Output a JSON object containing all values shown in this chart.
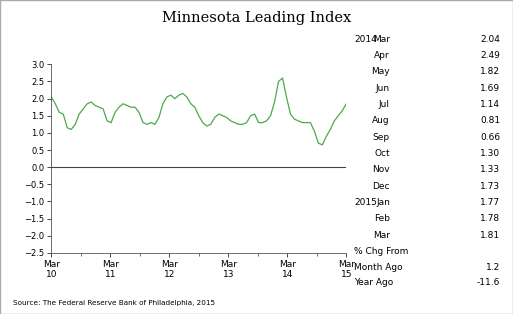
{
  "title": "Minnesota Leading Index",
  "source": "Source: The Federal Reserve Bank of Philadelphia, 2015",
  "line_color": "#4aaa4a",
  "background_color": "#ffffff",
  "ylim": [
    -2.5,
    3.0
  ],
  "yticks": [
    -2.5,
    -2.0,
    -1.5,
    -1.0,
    -0.5,
    0.0,
    0.5,
    1.0,
    1.5,
    2.0,
    2.5,
    3.0
  ],
  "xtick_labels": [
    "Mar\n10",
    "Mar\n11",
    "Mar\n12",
    "Mar\n13",
    "Mar\n14",
    "Mar\n15"
  ],
  "values": [
    2.05,
    1.85,
    1.6,
    1.55,
    1.15,
    1.1,
    1.25,
    1.55,
    1.7,
    1.85,
    1.9,
    1.8,
    1.75,
    1.7,
    1.35,
    1.3,
    1.6,
    1.75,
    1.85,
    1.8,
    1.75,
    1.75,
    1.6,
    1.3,
    1.25,
    1.3,
    1.25,
    1.45,
    1.85,
    2.05,
    2.1,
    2.0,
    2.1,
    2.15,
    2.05,
    1.85,
    1.75,
    1.5,
    1.3,
    1.2,
    1.25,
    1.45,
    1.55,
    1.5,
    1.45,
    1.35,
    1.3,
    1.25,
    1.25,
    1.3,
    1.5,
    1.55,
    1.3,
    1.3,
    1.35,
    1.5,
    1.9,
    2.5,
    2.6,
    2.05,
    1.55,
    1.4,
    1.35,
    1.3,
    1.3,
    1.3,
    1.05,
    0.7,
    0.65,
    0.9,
    1.1,
    1.35,
    1.5,
    1.65,
    1.85
  ],
  "table_year_2014": "2014",
  "table_year_2015": "2015",
  "table_months": [
    "Mar",
    "Apr",
    "May",
    "Jun",
    "Jul",
    "Aug",
    "Sep",
    "Oct",
    "Nov",
    "Dec",
    "Jan",
    "Feb",
    "Mar"
  ],
  "table_values": [
    2.04,
    2.49,
    1.82,
    1.69,
    1.14,
    0.81,
    0.66,
    1.3,
    1.33,
    1.73,
    1.77,
    1.78,
    1.81
  ],
  "pct_chg_month": "1.2",
  "pct_chg_year": "-11.6"
}
